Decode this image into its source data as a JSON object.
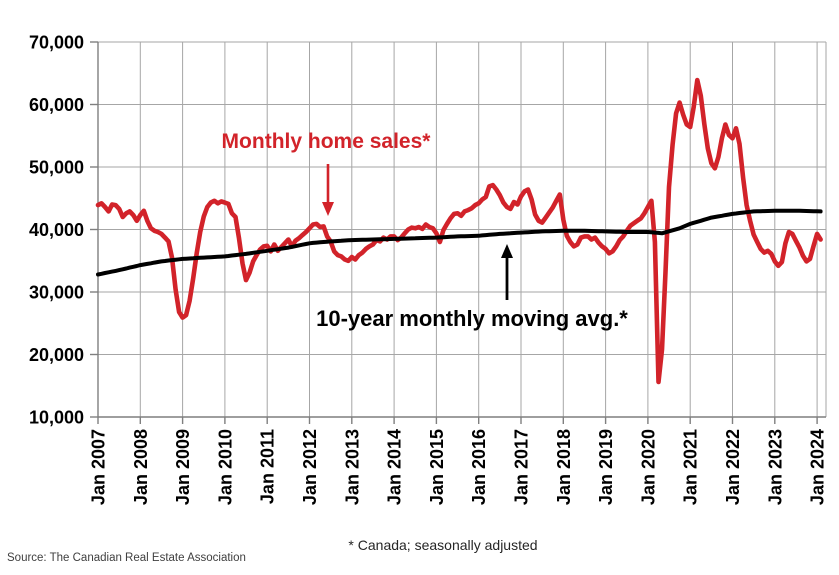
{
  "annotations": {
    "monthly_sales_label": "Monthly home sales*",
    "moving_avg_label": "10-year monthly moving avg.*",
    "footnote": "* Canada; seasonally adjusted"
  },
  "source": "Source: The Canadian Real Estate Association",
  "colors": {
    "sales_line": "#d2232a",
    "moving_avg_line": "#000000",
    "grid": "#a6a6a6",
    "axis": "#7f7f7f",
    "tick_label": "#000000"
  },
  "chart_data": {
    "type": "line",
    "title": "",
    "xlabel": "",
    "ylabel": "",
    "x_unit": "month",
    "x_range": [
      "2007-01",
      "2024-02"
    ],
    "x_tick_labels": [
      "Jan 2007",
      "Jan 2008",
      "Jan 2009",
      "Jan 2010",
      "Jan 2011",
      "Jan 2012",
      "Jan 2013",
      "Jan 2014",
      "Jan 2015",
      "Jan 2016",
      "Jan 2017",
      "Jan 2018",
      "Jan 2019",
      "Jan 2020",
      "Jan 2021",
      "Jan 2022",
      "Jan 2023",
      "Jan 2024"
    ],
    "ylim": [
      10000,
      70000
    ],
    "y_ticks": [
      10000,
      20000,
      30000,
      40000,
      50000,
      60000,
      70000
    ],
    "y_tick_labels": [
      "10,000",
      "20,000",
      "30,000",
      "40,000",
      "50,000",
      "60,000",
      "70,000"
    ],
    "grid": true,
    "legend_position": "inline-annotations",
    "series": [
      {
        "name": "Monthly home sales*",
        "color": "#d2232a",
        "frequency": "monthly",
        "start_month": "2007-01",
        "values": [
          43900,
          44200,
          43600,
          42900,
          44000,
          43900,
          43300,
          42000,
          42600,
          42900,
          42300,
          41400,
          42300,
          43000,
          41400,
          40200,
          39800,
          39600,
          39300,
          38700,
          38100,
          35500,
          30400,
          26800,
          25900,
          26300,
          28600,
          32200,
          36200,
          39600,
          42100,
          43600,
          44300,
          44600,
          44200,
          44500,
          44300,
          44100,
          42600,
          42000,
          38600,
          34600,
          31900,
          33100,
          34900,
          35900,
          36800,
          37300,
          37400,
          36500,
          37600,
          36600,
          37200,
          37800,
          38400,
          37300,
          38200,
          38600,
          39100,
          39600,
          40200,
          40800,
          40900,
          40400,
          40500,
          38900,
          38100,
          36500,
          35900,
          35700,
          35200,
          35000,
          35600,
          35200,
          35900,
          36300,
          36900,
          37300,
          37600,
          38300,
          38100,
          38700,
          38400,
          38900,
          38900,
          38300,
          38700,
          39400,
          40000,
          40300,
          40200,
          40400,
          40100,
          40800,
          40400,
          40200,
          39400,
          38000,
          39900,
          40900,
          41800,
          42500,
          42600,
          42200,
          42900,
          43100,
          43400,
          43900,
          44200,
          44800,
          45200,
          46900,
          47100,
          46400,
          45500,
          44300,
          43600,
          43300,
          44400,
          44000,
          45300,
          46100,
          46400,
          44800,
          42400,
          41400,
          41100,
          41900,
          42700,
          43500,
          44600,
          45600,
          41600,
          39000,
          38000,
          37300,
          37600,
          38700,
          38900,
          38900,
          38400,
          38700,
          37900,
          37300,
          36900,
          36200,
          36500,
          37300,
          38300,
          38900,
          39800,
          40600,
          41000,
          41400,
          41800,
          42600,
          43600,
          44600,
          38000,
          15600,
          20800,
          33200,
          46800,
          53600,
          58600,
          60300,
          58400,
          56800,
          56400,
          59600,
          63900,
          61400,
          56900,
          53000,
          50600,
          49800,
          51600,
          54600,
          56800,
          55100,
          54600,
          56200,
          53700,
          48300,
          43900,
          41400,
          39200,
          38000,
          36900,
          36300,
          36600,
          36100,
          34900,
          34200,
          34800,
          37800,
          39600,
          39300,
          38200,
          37100,
          35800,
          34900,
          35300,
          37400,
          39300,
          38400
        ]
      },
      {
        "name": "10-year monthly moving avg.*",
        "color": "#000000",
        "frequency": "anchor-points",
        "anchor_points": [
          [
            "2007-01",
            32800
          ],
          [
            "2007-07",
            33500
          ],
          [
            "2008-01",
            34300
          ],
          [
            "2008-07",
            34900
          ],
          [
            "2009-01",
            35300
          ],
          [
            "2009-07",
            35500
          ],
          [
            "2010-01",
            35700
          ],
          [
            "2010-07",
            36100
          ],
          [
            "2011-01",
            36600
          ],
          [
            "2011-07",
            37100
          ],
          [
            "2012-01",
            37800
          ],
          [
            "2012-07",
            38100
          ],
          [
            "2013-01",
            38300
          ],
          [
            "2013-07",
            38400
          ],
          [
            "2014-01",
            38500
          ],
          [
            "2014-07",
            38600
          ],
          [
            "2015-01",
            38700
          ],
          [
            "2015-07",
            38900
          ],
          [
            "2016-01",
            39000
          ],
          [
            "2016-07",
            39300
          ],
          [
            "2017-01",
            39500
          ],
          [
            "2017-07",
            39700
          ],
          [
            "2018-01",
            39800
          ],
          [
            "2018-07",
            39800
          ],
          [
            "2019-01",
            39700
          ],
          [
            "2019-07",
            39600
          ],
          [
            "2020-01",
            39600
          ],
          [
            "2020-05",
            39400
          ],
          [
            "2020-10",
            40200
          ],
          [
            "2021-01",
            40900
          ],
          [
            "2021-07",
            41900
          ],
          [
            "2022-01",
            42500
          ],
          [
            "2022-07",
            42900
          ],
          [
            "2023-01",
            43000
          ],
          [
            "2023-07",
            43000
          ],
          [
            "2024-02",
            42900
          ]
        ]
      }
    ]
  }
}
